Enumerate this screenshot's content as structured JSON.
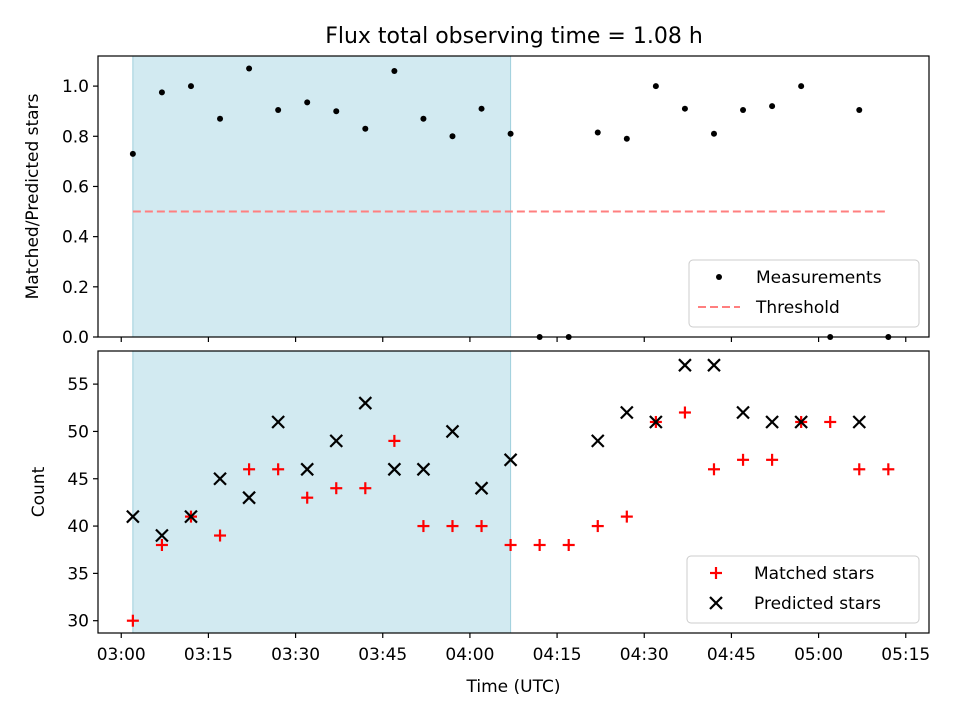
{
  "title": "Flux total observing time = 1.08 h",
  "xlabel": "Time (UTC)",
  "x_ticks": [
    "03:00",
    "03:15",
    "03:30",
    "03:45",
    "04:00",
    "04:15",
    "04:30",
    "04:45",
    "05:00",
    "05:15"
  ],
  "colors": {
    "shade": "#add8e6",
    "threshold": "#ff7f7f",
    "measurement": "#000000",
    "matched": "#ff0000",
    "predicted": "#000000"
  },
  "chart_data": [
    {
      "type": "scatter",
      "panel": "top",
      "ylabel": "Matched/Predicted stars",
      "ylim": [
        0,
        1.12
      ],
      "xlim": [
        "02:56",
        "05:19"
      ],
      "y_ticks": [
        "0.0",
        "0.2",
        "0.4",
        "0.6",
        "0.8",
        "1.0"
      ],
      "shaded_span": [
        "03:02",
        "04:07"
      ],
      "threshold": {
        "name": "Threshold",
        "value": 0.5,
        "x_range": [
          "03:02",
          "05:12"
        ]
      },
      "legend": [
        "Measurements",
        "Threshold"
      ],
      "legend_position": "lower-right",
      "series": [
        {
          "name": "Measurements",
          "x": [
            "03:02",
            "03:07",
            "03:12",
            "03:17",
            "03:22",
            "03:27",
            "03:32",
            "03:37",
            "03:42",
            "03:47",
            "03:52",
            "03:57",
            "04:02",
            "04:07",
            "04:12",
            "04:17",
            "04:22",
            "04:27",
            "04:32",
            "04:37",
            "04:42",
            "04:47",
            "04:52",
            "04:57",
            "05:02",
            "05:07",
            "05:12"
          ],
          "y": [
            0.73,
            0.975,
            1.0,
            0.87,
            1.07,
            0.905,
            0.935,
            0.9,
            0.83,
            1.06,
            0.87,
            0.8,
            0.91,
            0.81,
            0.0,
            0.0,
            0.815,
            0.79,
            1.0,
            0.91,
            0.81,
            0.905,
            0.92,
            1.0,
            0.0,
            0.905,
            0.0
          ]
        }
      ]
    },
    {
      "type": "scatter",
      "panel": "bottom",
      "ylabel": "Count",
      "ylim": [
        28.7,
        58.5
      ],
      "xlim": [
        "02:56",
        "05:19"
      ],
      "y_ticks": [
        "30",
        "35",
        "40",
        "45",
        "50",
        "55"
      ],
      "shaded_span": [
        "03:02",
        "04:07"
      ],
      "legend": [
        "Matched stars",
        "Predicted stars"
      ],
      "legend_position": "lower-right",
      "series": [
        {
          "name": "Matched stars",
          "marker": "plus",
          "x": [
            "03:02",
            "03:07",
            "03:12",
            "03:17",
            "03:22",
            "03:27",
            "03:32",
            "03:37",
            "03:42",
            "03:47",
            "03:52",
            "03:57",
            "04:02",
            "04:07",
            "04:12",
            "04:17",
            "04:22",
            "04:27",
            "04:32",
            "04:37",
            "04:42",
            "04:47",
            "04:52",
            "04:57",
            "05:02",
            "05:07",
            "05:12"
          ],
          "y": [
            30,
            38,
            41,
            39,
            46,
            46,
            43,
            44,
            44,
            49,
            40,
            40,
            40,
            38,
            38,
            38,
            40,
            41,
            51,
            52,
            46,
            47,
            47,
            51,
            51,
            46,
            46
          ]
        },
        {
          "name": "Predicted stars",
          "marker": "x",
          "x": [
            "03:02",
            "03:07",
            "03:12",
            "03:17",
            "03:22",
            "03:27",
            "03:32",
            "03:37",
            "03:42",
            "03:47",
            "03:52",
            "03:57",
            "04:02",
            "04:07",
            "04:22",
            "04:27",
            "04:32",
            "04:37",
            "04:42",
            "04:47",
            "04:52",
            "04:57",
            "05:07"
          ],
          "y": [
            41,
            39,
            41,
            45,
            43,
            51,
            46,
            49,
            53,
            46,
            46,
            50,
            44,
            47,
            49,
            52,
            51,
            57,
            57,
            52,
            51,
            51,
            51
          ]
        }
      ]
    }
  ]
}
